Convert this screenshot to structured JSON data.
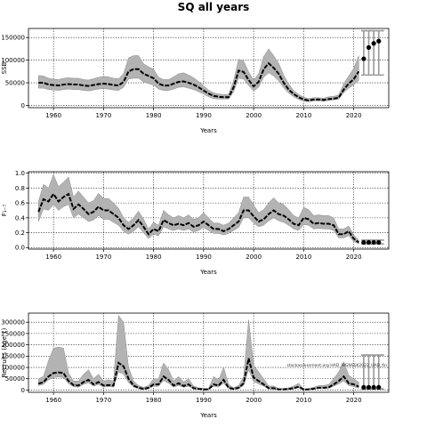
{
  "title": "SQ all years",
  "chart_data": [
    {
      "type": "line",
      "name": "ssb",
      "ylabel": "SSB",
      "xlabel": "Years",
      "xlim": [
        1955,
        2027
      ],
      "ylim": [
        -5000,
        170000
      ],
      "xticks": [
        1960,
        1970,
        1980,
        1990,
        2000,
        2010,
        2020
      ],
      "yticks": [
        0,
        50000,
        100000,
        150000
      ],
      "ytick_labels": [
        "0",
        "50000",
        "100000",
        "150000"
      ],
      "grid": true,
      "x": [
        1957,
        1958,
        1959,
        1960,
        1961,
        1962,
        1963,
        1964,
        1965,
        1966,
        1967,
        1968,
        1969,
        1970,
        1971,
        1972,
        1973,
        1974,
        1975,
        1976,
        1977,
        1978,
        1979,
        1980,
        1981,
        1982,
        1983,
        1984,
        1985,
        1986,
        1987,
        1988,
        1989,
        1990,
        1991,
        1992,
        1993,
        1994,
        1995,
        1996,
        1997,
        1998,
        1999,
        2000,
        2001,
        2002,
        2003,
        2004,
        2005,
        2006,
        2007,
        2008,
        2009,
        2010,
        2011,
        2012,
        2013,
        2014,
        2015,
        2016,
        2017,
        2018,
        2019,
        2020,
        2021
      ],
      "median": [
        50000,
        50000,
        46000,
        45000,
        44000,
        46000,
        47000,
        46000,
        46000,
        44000,
        43000,
        45000,
        47000,
        48000,
        47000,
        45000,
        44000,
        52000,
        75000,
        80000,
        80000,
        70000,
        65000,
        60000,
        48000,
        44000,
        44000,
        48000,
        52000,
        53000,
        50000,
        46000,
        40000,
        33000,
        26000,
        21000,
        19000,
        18000,
        18000,
        40000,
        77000,
        74000,
        56000,
        42000,
        52000,
        80000,
        93000,
        83000,
        70000,
        50000,
        35000,
        25000,
        18000,
        13000,
        11000,
        13000,
        13000,
        12000,
        14000,
        15000,
        17000,
        35000,
        48000,
        58000,
        75000
      ],
      "lower": [
        38000,
        38000,
        35000,
        34000,
        33000,
        35000,
        36000,
        35000,
        35000,
        33000,
        32000,
        34000,
        36000,
        37000,
        36000,
        34000,
        33000,
        40000,
        58000,
        60000,
        60000,
        52000,
        48000,
        45000,
        36000,
        33000,
        33000,
        36000,
        40000,
        41000,
        38000,
        35000,
        30000,
        25000,
        19000,
        15000,
        14000,
        14000,
        14000,
        30000,
        60000,
        58000,
        44000,
        32000,
        40000,
        62000,
        72000,
        65000,
        54000,
        39000,
        27000,
        19000,
        13000,
        9000,
        8000,
        10000,
        10000,
        9000,
        11000,
        12000,
        14000,
        28000,
        38000,
        45000,
        55000
      ],
      "upper": [
        66000,
        65000,
        60000,
        58000,
        57000,
        60000,
        61000,
        60000,
        60000,
        57000,
        56000,
        59000,
        62000,
        64000,
        63000,
        60000,
        59000,
        70000,
        105000,
        110000,
        110000,
        92000,
        85000,
        80000,
        62000,
        57000,
        57000,
        63000,
        70000,
        72000,
        67000,
        61000,
        53000,
        43000,
        34000,
        28000,
        25000,
        24000,
        24000,
        55000,
        102000,
        98000,
        74000,
        56000,
        70000,
        108000,
        125000,
        110000,
        93000,
        67000,
        47000,
        33000,
        24000,
        18000,
        15000,
        17000,
        17000,
        16000,
        19000,
        20000,
        23000,
        48000,
        65000,
        82000,
        110000
      ],
      "projection_x": [
        2022,
        2023,
        2024,
        2025
      ],
      "projection_values": [
        103000,
        128000,
        137000,
        142000
      ],
      "projection_range": [
        67000,
        165000
      ]
    },
    {
      "type": "line",
      "name": "fbar",
      "ylabel": "F₁₋₇",
      "xlabel": "Years",
      "xlim": [
        1955,
        2027
      ],
      "ylim": [
        -0.02,
        1.02
      ],
      "xticks": [
        1960,
        1970,
        1980,
        1990,
        2000,
        2010,
        2020
      ],
      "yticks": [
        0.0,
        0.2,
        0.4,
        0.6,
        0.8,
        1.0
      ],
      "ytick_labels": [
        "0.0",
        "0.2",
        "0.4",
        "0.6",
        "0.8",
        "1.0"
      ],
      "grid": true,
      "x": [
        1957,
        1958,
        1959,
        1960,
        1961,
        1962,
        1963,
        1964,
        1965,
        1966,
        1967,
        1968,
        1969,
        1970,
        1971,
        1972,
        1973,
        1974,
        1975,
        1976,
        1977,
        1978,
        1979,
        1980,
        1981,
        1982,
        1983,
        1984,
        1985,
        1986,
        1987,
        1988,
        1989,
        1990,
        1991,
        1992,
        1993,
        1994,
        1995,
        1996,
        1997,
        1998,
        1999,
        2000,
        2001,
        2002,
        2003,
        2004,
        2005,
        2006,
        2007,
        2008,
        2009,
        2010,
        2011,
        2012,
        2013,
        2014,
        2015,
        2016,
        2017,
        2018,
        2019,
        2020,
        2021
      ],
      "median": [
        0.48,
        0.65,
        0.62,
        0.72,
        0.62,
        0.68,
        0.72,
        0.52,
        0.58,
        0.52,
        0.45,
        0.48,
        0.55,
        0.5,
        0.5,
        0.45,
        0.4,
        0.3,
        0.25,
        0.3,
        0.37,
        0.28,
        0.18,
        0.25,
        0.22,
        0.37,
        0.33,
        0.3,
        0.32,
        0.3,
        0.33,
        0.28,
        0.3,
        0.35,
        0.3,
        0.25,
        0.25,
        0.22,
        0.25,
        0.3,
        0.35,
        0.5,
        0.5,
        0.42,
        0.35,
        0.38,
        0.45,
        0.5,
        0.45,
        0.43,
        0.38,
        0.32,
        0.3,
        0.4,
        0.38,
        0.32,
        0.33,
        0.32,
        0.32,
        0.3,
        0.18,
        0.18,
        0.22,
        0.12,
        0.07
      ],
      "lower": [
        0.35,
        0.52,
        0.5,
        0.58,
        0.5,
        0.55,
        0.58,
        0.4,
        0.45,
        0.4,
        0.35,
        0.37,
        0.43,
        0.38,
        0.38,
        0.34,
        0.3,
        0.22,
        0.18,
        0.22,
        0.28,
        0.2,
        0.12,
        0.18,
        0.16,
        0.28,
        0.25,
        0.23,
        0.25,
        0.23,
        0.25,
        0.21,
        0.23,
        0.27,
        0.23,
        0.19,
        0.19,
        0.17,
        0.19,
        0.23,
        0.27,
        0.4,
        0.4,
        0.33,
        0.28,
        0.3,
        0.36,
        0.4,
        0.36,
        0.34,
        0.3,
        0.25,
        0.23,
        0.31,
        0.3,
        0.25,
        0.26,
        0.25,
        0.25,
        0.23,
        0.13,
        0.13,
        0.16,
        0.08,
        0.05
      ],
      "upper": [
        0.62,
        0.85,
        0.8,
        0.98,
        0.82,
        0.88,
        0.95,
        0.68,
        0.76,
        0.68,
        0.6,
        0.63,
        0.73,
        0.66,
        0.66,
        0.6,
        0.53,
        0.4,
        0.34,
        0.4,
        0.49,
        0.38,
        0.25,
        0.34,
        0.3,
        0.5,
        0.44,
        0.4,
        0.43,
        0.4,
        0.44,
        0.38,
        0.4,
        0.47,
        0.4,
        0.33,
        0.33,
        0.3,
        0.33,
        0.4,
        0.47,
        0.68,
        0.68,
        0.57,
        0.47,
        0.51,
        0.6,
        0.67,
        0.6,
        0.58,
        0.51,
        0.43,
        0.4,
        0.54,
        0.51,
        0.43,
        0.44,
        0.43,
        0.43,
        0.4,
        0.25,
        0.25,
        0.29,
        0.17,
        0.1
      ],
      "projection_x": [
        2022,
        2023,
        2024,
        2025
      ],
      "projection_values": [
        0.07,
        0.07,
        0.07,
        0.07
      ],
      "projection_range": [
        0.05,
        0.1
      ]
    },
    {
      "type": "line",
      "name": "recruits",
      "ylabel": "Recruits (age 1)",
      "xlabel": "Years",
      "xlim": [
        1955,
        2027
      ],
      "ylim": [
        -10000,
        340000
      ],
      "xticks": [
        1960,
        1970,
        1980,
        1990,
        2000,
        2010,
        2020
      ],
      "yticks": [
        0,
        50000,
        100000,
        150000,
        200000,
        250000,
        300000
      ],
      "ytick_labels": [
        "0",
        "50000",
        "100000",
        "150000",
        "200000",
        "250000",
        "300000"
      ],
      "grid": true,
      "annotation": "stockassessment.org HAD_WGNSSK2022_HAD_fin",
      "x": [
        1957,
        1958,
        1959,
        1960,
        1961,
        1962,
        1963,
        1964,
        1965,
        1966,
        1967,
        1968,
        1969,
        1970,
        1971,
        1972,
        1973,
        1974,
        1975,
        1976,
        1977,
        1978,
        1979,
        1980,
        1981,
        1982,
        1983,
        1984,
        1985,
        1986,
        1987,
        1988,
        1989,
        1990,
        1991,
        1992,
        1993,
        1994,
        1995,
        1996,
        1997,
        1998,
        1999,
        2000,
        2001,
        2002,
        2003,
        2004,
        2005,
        2006,
        2007,
        2008,
        2009,
        2010,
        2011,
        2012,
        2013,
        2014,
        2015,
        2016,
        2017,
        2018,
        2019,
        2020,
        2021
      ],
      "median": [
        28000,
        35000,
        60000,
        75000,
        78000,
        75000,
        40000,
        22000,
        20000,
        35000,
        45000,
        25000,
        35000,
        20000,
        22000,
        20000,
        120000,
        105000,
        50000,
        20000,
        10000,
        5000,
        10000,
        25000,
        25000,
        60000,
        45000,
        20000,
        30000,
        18000,
        25000,
        8000,
        5000,
        3000,
        3000,
        25000,
        20000,
        45000,
        10000,
        5000,
        10000,
        30000,
        140000,
        55000,
        40000,
        25000,
        8000,
        8000,
        3000,
        3000,
        5000,
        8000,
        15000,
        2000,
        3000,
        6000,
        10000,
        10000,
        12000,
        25000,
        40000,
        60000,
        30000,
        25000,
        15000
      ],
      "lower": [
        20000,
        25000,
        45000,
        55000,
        58000,
        55000,
        28000,
        15000,
        13000,
        25000,
        32000,
        17000,
        25000,
        13000,
        15000,
        13000,
        80000,
        70000,
        33000,
        13000,
        6000,
        3000,
        6000,
        17000,
        17000,
        42000,
        30000,
        13000,
        20000,
        12000,
        17000,
        5000,
        3000,
        2000,
        2000,
        17000,
        13000,
        30000,
        6000,
        3000,
        6000,
        20000,
        90000,
        37000,
        27000,
        17000,
        5000,
        5000,
        2000,
        2000,
        3000,
        5000,
        10000,
        1000,
        2000,
        4000,
        7000,
        7000,
        8000,
        17000,
        27000,
        40000,
        20000,
        15000,
        8000
      ],
      "upper": [
        50000,
        60000,
        130000,
        185000,
        190000,
        185000,
        75000,
        40000,
        40000,
        70000,
        90000,
        50000,
        70000,
        40000,
        45000,
        40000,
        330000,
        300000,
        100000,
        40000,
        20000,
        12000,
        20000,
        50000,
        50000,
        120000,
        90000,
        40000,
        60000,
        35000,
        50000,
        18000,
        10000,
        7000,
        7000,
        60000,
        45000,
        100000,
        25000,
        10000,
        20000,
        60000,
        310000,
        110000,
        80000,
        50000,
        18000,
        18000,
        7000,
        7000,
        10000,
        18000,
        30000,
        5000,
        7000,
        12000,
        20000,
        20000,
        25000,
        50000,
        80000,
        125000,
        65000,
        50000,
        35000
      ],
      "projection_x": [
        2022,
        2023,
        2024,
        2025
      ],
      "projection_values": [
        12000,
        12000,
        12000,
        12000
      ],
      "projection_range": [
        5000,
        155000
      ]
    }
  ]
}
